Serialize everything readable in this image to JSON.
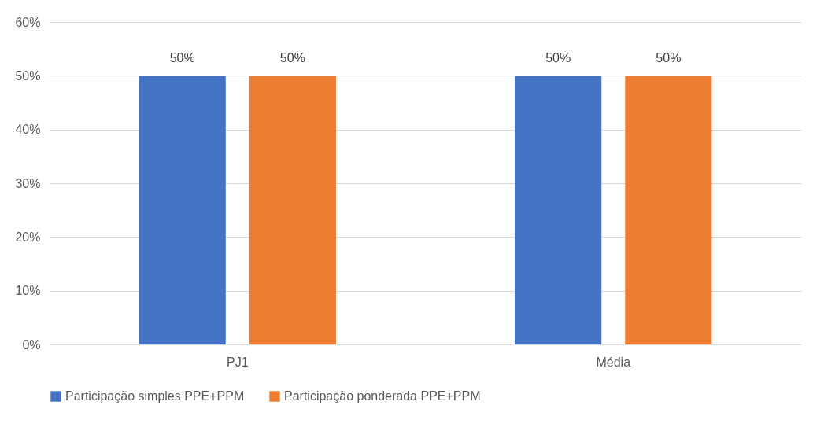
{
  "chart_data": {
    "type": "bar",
    "categories": [
      "PJ1",
      "Média"
    ],
    "series": [
      {
        "name": "Participação simples PPE+PPM",
        "color": "#4472c4",
        "values": [
          50,
          50
        ],
        "value_labels": [
          "50%",
          "50%"
        ]
      },
      {
        "name": "Participação ponderada PPE+PPM",
        "color": "#ed7d31",
        "values": [
          50,
          50
        ],
        "value_labels": [
          "50%",
          "50%"
        ]
      }
    ],
    "ylim": [
      0,
      60
    ],
    "yticks": [
      {
        "value": 0,
        "label": "0%"
      },
      {
        "value": 10,
        "label": "10%"
      },
      {
        "value": 20,
        "label": "20%"
      },
      {
        "value": 30,
        "label": "30%"
      },
      {
        "value": 40,
        "label": "40%"
      },
      {
        "value": 50,
        "label": "50%"
      },
      {
        "value": 60,
        "label": "60%"
      }
    ],
    "grid": "y",
    "legend": "bottom"
  }
}
